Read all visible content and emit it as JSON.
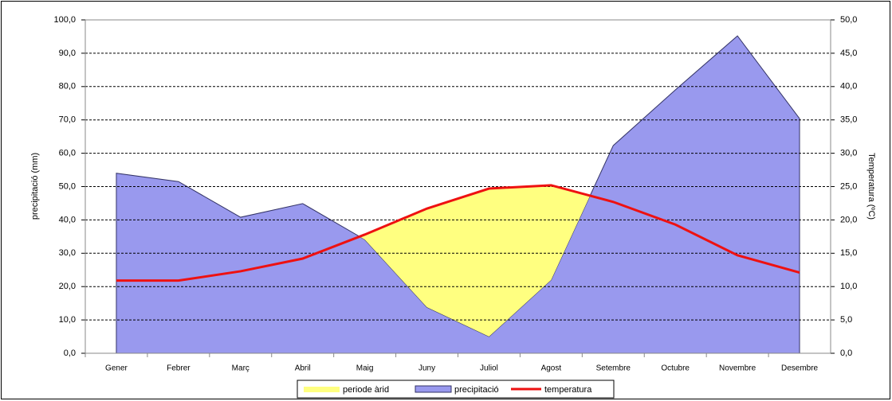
{
  "chart_data": {
    "type": "area_line",
    "ylabel": "precipitació (mm)",
    "y2label": "Temperatura (ºC)",
    "categories": [
      "Gener",
      "Febrer",
      "Març",
      "Abril",
      "Maig",
      "Juny",
      "Juliol",
      "Agost",
      "Setembre",
      "Octubre",
      "Novembre",
      "Desembre"
    ],
    "series": [
      {
        "name": "precipitació",
        "color": "#9999ee",
        "values": [
          54,
          51.5,
          40.8,
          44.9,
          34.1,
          13.8,
          5.0,
          22,
          62.3,
          79,
          95.2,
          70.4
        ]
      },
      {
        "name": "temperatura",
        "color": "#ee1111",
        "axis": "y2",
        "values": [
          10.9,
          10.9,
          12.3,
          14.2,
          17.8,
          21.7,
          24.7,
          25.2,
          22.7,
          19.3,
          14.7,
          12.1
        ]
      }
    ],
    "arid_period": {
      "name": "periode àrid",
      "color": "#ffff80"
    },
    "ylim": [
      0,
      100
    ],
    "yticks": [
      {
        "value": 0,
        "label": "0,0"
      },
      {
        "value": 10,
        "label": "10,0"
      },
      {
        "value": 20,
        "label": "20,0"
      },
      {
        "value": 30,
        "label": "30,0"
      },
      {
        "value": 40,
        "label": "40,0"
      },
      {
        "value": 50,
        "label": "50,0"
      },
      {
        "value": 60,
        "label": "60,0"
      },
      {
        "value": 70,
        "label": "70,0"
      },
      {
        "value": 80,
        "label": "80,0"
      },
      {
        "value": 90,
        "label": "90,0"
      },
      {
        "value": 100,
        "label": "100,0"
      }
    ],
    "y2lim": [
      0,
      50
    ],
    "y2ticks": [
      {
        "value": 0,
        "label": "0,0"
      },
      {
        "value": 5,
        "label": "5,0"
      },
      {
        "value": 10,
        "label": "10,0"
      },
      {
        "value": 15,
        "label": "15,0"
      },
      {
        "value": 20,
        "label": "20,0"
      },
      {
        "value": 25,
        "label": "25,0"
      },
      {
        "value": 30,
        "label": "30,0"
      },
      {
        "value": 35,
        "label": "35,0"
      },
      {
        "value": 40,
        "label": "40,0"
      },
      {
        "value": 45,
        "label": "45,0"
      },
      {
        "value": 50,
        "label": "50,0"
      }
    ],
    "grid": true
  }
}
